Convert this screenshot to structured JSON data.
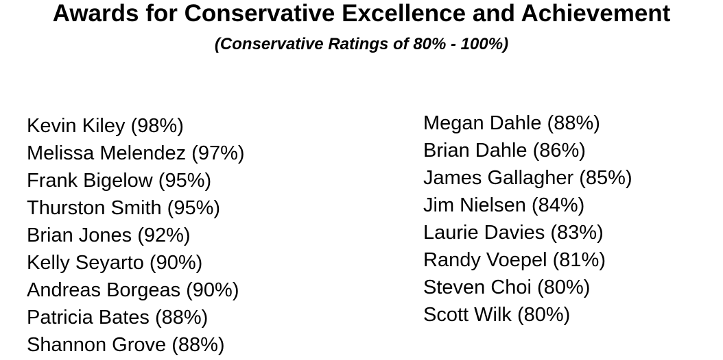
{
  "header": {
    "title": "Awards for Conservative Excellence and Achievement",
    "subtitle": "(Conservative Ratings of 80% - 100%)"
  },
  "left_column": [
    "Kevin Kiley (98%)",
    "Melissa Melendez (97%)",
    "Frank Bigelow (95%)",
    "Thurston Smith (95%)",
    "Brian Jones (92%)",
    "Kelly Seyarto (90%)",
    "Andreas Borgeas (90%)",
    "Patricia Bates (88%)",
    "Shannon Grove (88%)"
  ],
  "right_column": [
    "Megan Dahle (88%)",
    "Brian Dahle (86%)",
    "James Gallagher (85%)",
    "Jim Nielsen (84%)",
    "Laurie Davies (83%)",
    "Randy Voepel (81%)",
    "Steven Choi (80%)",
    "Scott Wilk (80%)"
  ]
}
